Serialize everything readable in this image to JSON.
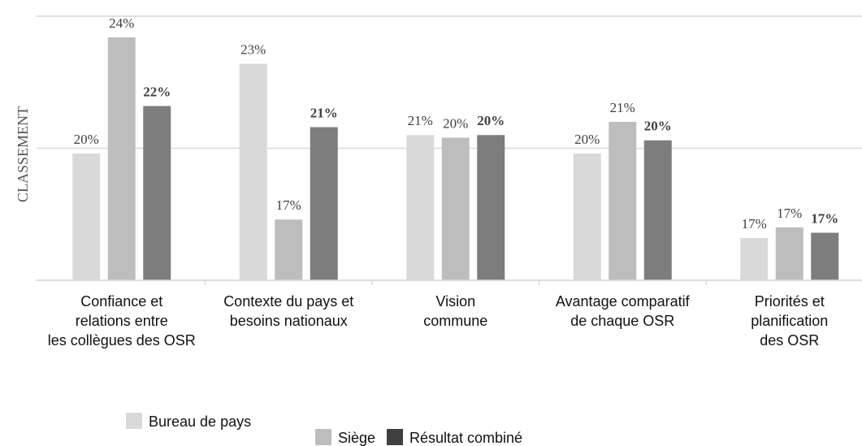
{
  "chart_data": {
    "type": "bar",
    "y_label": "CLASSEMENT",
    "categories": [
      [
        "Confiance et",
        "relations entre",
        "les collègues des OSR"
      ],
      [
        "Contexte du pays et",
        "besoins nationaux"
      ],
      [
        "Vision",
        "commune"
      ],
      [
        "Avantage comparatif",
        "de chaque OSR"
      ],
      [
        "Priorités et",
        "planification",
        "des OSR"
      ]
    ],
    "series": [
      {
        "name": "Bureau de pays",
        "color": "#d9d9d9",
        "values": [
          19.8,
          23.2,
          20.5,
          19.8,
          16.6
        ],
        "value_labels": [
          "20%",
          "23%",
          "21%",
          "20%",
          "17%"
        ]
      },
      {
        "name": "Siège",
        "color": "#bdbdbd",
        "values": [
          24.2,
          17.3,
          20.4,
          21.0,
          17.0
        ],
        "value_labels": [
          "24%",
          "17%",
          "20%",
          "21%",
          "17%"
        ]
      },
      {
        "name": "Résultat combiné",
        "color": "#7d7d7d",
        "values": [
          21.6,
          20.8,
          20.5,
          20.3,
          16.8
        ],
        "value_labels": [
          "22%",
          "21%",
          "20%",
          "20%",
          "17%"
        ]
      }
    ],
    "ylim": [
      15,
      25
    ],
    "yticks": [
      15,
      20,
      25
    ],
    "grid": true
  }
}
